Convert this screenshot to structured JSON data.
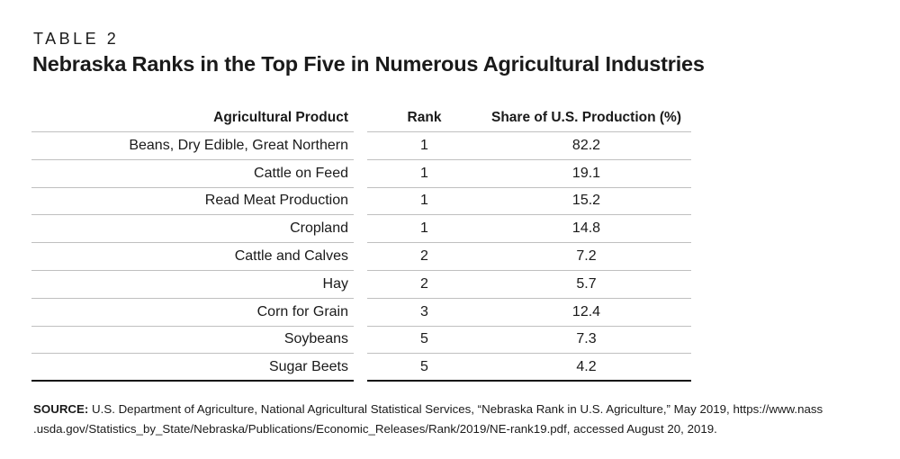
{
  "kicker": "TABLE 2",
  "title": "Nebraska Ranks in the Top Five in Numerous Agricultural Industries",
  "chart_data": {
    "type": "table",
    "title": "Nebraska Ranks in the Top Five in Numerous Agricultural Industries",
    "kicker": "TABLE 2",
    "columns": [
      "Agricultural Product",
      "Rank",
      "Share of U.S. Production (%)"
    ],
    "rows": [
      {
        "product": "Beans, Dry Edible, Great Northern",
        "rank": 1,
        "share": 82.2
      },
      {
        "product": "Cattle on Feed",
        "rank": 1,
        "share": 19.1
      },
      {
        "product": "Read Meat Production",
        "rank": 1,
        "share": 15.2
      },
      {
        "product": "Cropland",
        "rank": 1,
        "share": 14.8
      },
      {
        "product": "Cattle and Calves",
        "rank": 2,
        "share": 7.2
      },
      {
        "product": "Hay",
        "rank": 2,
        "share": 5.7
      },
      {
        "product": "Corn for Grain",
        "rank": 3,
        "share": 12.4
      },
      {
        "product": "Soybeans",
        "rank": 5,
        "share": 7.3
      },
      {
        "product": "Sugar Beets",
        "rank": 5,
        "share": 4.2
      }
    ]
  },
  "source": {
    "label": "SOURCE:",
    "line1": " U.S. Department of Agriculture, National Agricultural Statistical Services, “Nebraska Rank in U.S. Agriculture,” May 2019, https://www.nass",
    "line2": ".usda.gov/Statistics_by_State/Nebraska/Publications/Economic_Releases/Rank/2019/NE-rank19.pdf, accessed August 20, 2019."
  },
  "colors": {
    "ink": "#1a1a1a",
    "rule": "#c0c0c0",
    "strong_rule": "#111111",
    "background": "#ffffff"
  }
}
